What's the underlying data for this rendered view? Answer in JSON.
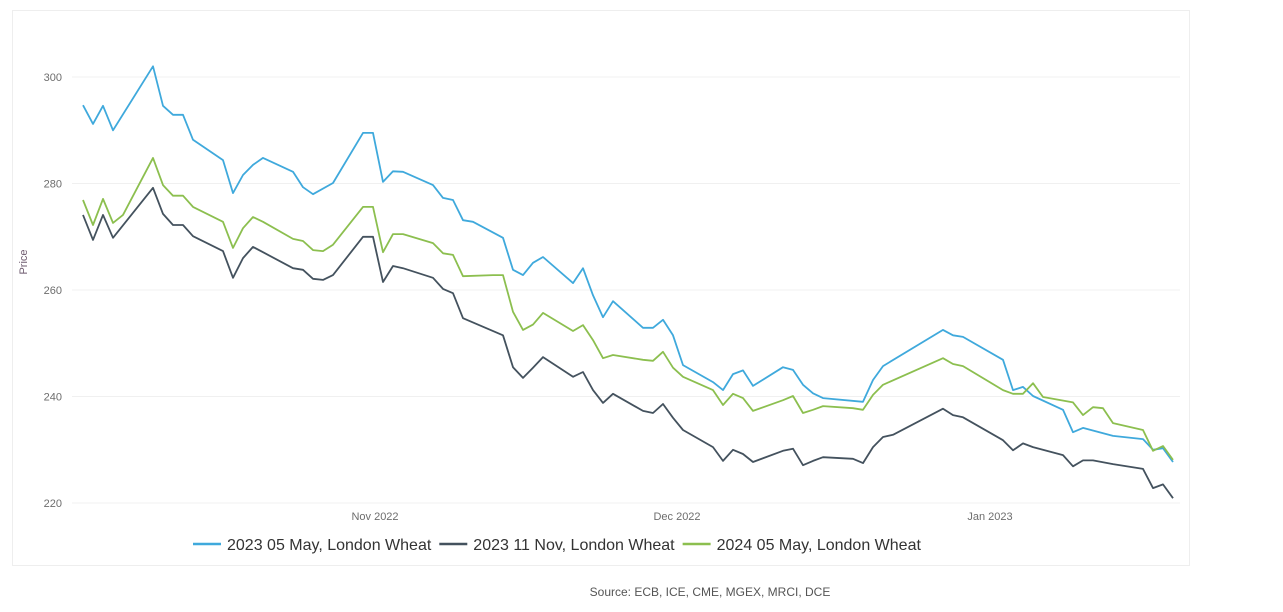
{
  "chart_data": {
    "type": "line",
    "title": "",
    "xlabel": "",
    "ylabel": "Price",
    "xlim": [
      2,
      111
    ],
    "ylim": [
      220,
      302
    ],
    "yticks": [
      220,
      240,
      260,
      280,
      300
    ],
    "xticks": [
      {
        "day": 31.2,
        "label": "Nov 2022"
      },
      {
        "day": 61.4,
        "label": "Dec 2022"
      },
      {
        "day": 92.7,
        "label": "Jan 2023"
      }
    ],
    "grid": true,
    "legend_position": "bottom",
    "source": "Source: ECB, ICE, CME, MGEX, MRCI, DCE",
    "series": [
      {
        "name": "2023 05 May, London Wheat",
        "color": "#3fa9dc",
        "points": [
          [
            2,
            294.7
          ],
          [
            3,
            291.2
          ],
          [
            4,
            294.6
          ],
          [
            5,
            290
          ],
          [
            9,
            302
          ],
          [
            10,
            294.6
          ],
          [
            11,
            292.9
          ],
          [
            12,
            292.9
          ],
          [
            13,
            288.2
          ],
          [
            16,
            284.4
          ],
          [
            17,
            278.2
          ],
          [
            18,
            281.6
          ],
          [
            19,
            283.5
          ],
          [
            20,
            284.8
          ],
          [
            23,
            282.2
          ],
          [
            24,
            279.3
          ],
          [
            25,
            278
          ],
          [
            27,
            280.1
          ],
          [
            30,
            289.5
          ],
          [
            31,
            289.5
          ],
          [
            32,
            280.3
          ],
          [
            33,
            282.3
          ],
          [
            34,
            282.2
          ],
          [
            37,
            279.7
          ],
          [
            38,
            277.3
          ],
          [
            39,
            276.9
          ],
          [
            40,
            273.1
          ],
          [
            41,
            272.8
          ],
          [
            44,
            269.8
          ],
          [
            45,
            263.8
          ],
          [
            46,
            262.8
          ],
          [
            47,
            265.1
          ],
          [
            48,
            266.2
          ],
          [
            51,
            261.3
          ],
          [
            52,
            264.1
          ],
          [
            53,
            259
          ],
          [
            54,
            254.9
          ],
          [
            55,
            257.9
          ],
          [
            58,
            252.9
          ],
          [
            59,
            252.9
          ],
          [
            60,
            254.4
          ],
          [
            61,
            251.5
          ],
          [
            62,
            245.9
          ],
          [
            65,
            242.7
          ],
          [
            66,
            241.2
          ],
          [
            67,
            244.2
          ],
          [
            68,
            244.9
          ],
          [
            69,
            242
          ],
          [
            72,
            245.5
          ],
          [
            73,
            245
          ],
          [
            74,
            242.2
          ],
          [
            75,
            240.6
          ],
          [
            76,
            239.7
          ],
          [
            80,
            239
          ],
          [
            81,
            243.1
          ],
          [
            82,
            245.7
          ],
          [
            88,
            252.5
          ],
          [
            89,
            251.5
          ],
          [
            90,
            251.2
          ],
          [
            94,
            246.9
          ],
          [
            95,
            241.2
          ],
          [
            96,
            241.8
          ],
          [
            97,
            240.1
          ],
          [
            100,
            237.5
          ],
          [
            101,
            233.3
          ],
          [
            102,
            234.1
          ],
          [
            105,
            232.6
          ],
          [
            108,
            232
          ],
          [
            109,
            230
          ],
          [
            110,
            230.3
          ],
          [
            111,
            227.7
          ]
        ]
      },
      {
        "name": "2023 11 Nov, London Wheat",
        "color": "#44525e",
        "points": [
          [
            2,
            274.1
          ],
          [
            3,
            269.4
          ],
          [
            4,
            274.1
          ],
          [
            5,
            269.8
          ],
          [
            9,
            279.2
          ],
          [
            10,
            274.3
          ],
          [
            11,
            272.2
          ],
          [
            12,
            272.2
          ],
          [
            13,
            270.1
          ],
          [
            16,
            267.3
          ],
          [
            17,
            262.3
          ],
          [
            18,
            266
          ],
          [
            19,
            268.1
          ],
          [
            20,
            267.1
          ],
          [
            23,
            264.1
          ],
          [
            24,
            263.8
          ],
          [
            25,
            262.1
          ],
          [
            26,
            261.9
          ],
          [
            27,
            262.8
          ],
          [
            30,
            270
          ],
          [
            31,
            270
          ],
          [
            32,
            261.5
          ],
          [
            33,
            264.5
          ],
          [
            34,
            264.1
          ],
          [
            37,
            262.3
          ],
          [
            38,
            260.2
          ],
          [
            39,
            259.4
          ],
          [
            40,
            254.7
          ],
          [
            44,
            251.5
          ],
          [
            45,
            245.5
          ],
          [
            46,
            243.5
          ],
          [
            47,
            245.4
          ],
          [
            48,
            247.4
          ],
          [
            51,
            243.7
          ],
          [
            52,
            244.6
          ],
          [
            53,
            241.2
          ],
          [
            54,
            238.8
          ],
          [
            55,
            240.5
          ],
          [
            58,
            237.3
          ],
          [
            59,
            236.9
          ],
          [
            60,
            238.6
          ],
          [
            61,
            236
          ],
          [
            62,
            233.7
          ],
          [
            65,
            230.5
          ],
          [
            66,
            227.9
          ],
          [
            67,
            230
          ],
          [
            68,
            229.2
          ],
          [
            69,
            227.7
          ],
          [
            72,
            229.8
          ],
          [
            73,
            230.2
          ],
          [
            74,
            227.1
          ],
          [
            75,
            227.9
          ],
          [
            76,
            228.6
          ],
          [
            79,
            228.3
          ],
          [
            80,
            227.5
          ],
          [
            81,
            230.5
          ],
          [
            82,
            232.4
          ],
          [
            83,
            232.8
          ],
          [
            88,
            237.7
          ],
          [
            89,
            236.5
          ],
          [
            90,
            236.1
          ],
          [
            94,
            231.8
          ],
          [
            95,
            229.9
          ],
          [
            96,
            231.2
          ],
          [
            97,
            230.5
          ],
          [
            100,
            229
          ],
          [
            101,
            226.9
          ],
          [
            102,
            228
          ],
          [
            103,
            228
          ],
          [
            105,
            227.3
          ],
          [
            108,
            226.4
          ],
          [
            109,
            222.8
          ],
          [
            110,
            223.5
          ],
          [
            111,
            220.9
          ]
        ]
      },
      {
        "name": "2024 05 May, London Wheat",
        "color": "#8cbf4f",
        "points": [
          [
            2,
            276.9
          ],
          [
            3,
            272.2
          ],
          [
            4,
            277.1
          ],
          [
            5,
            272.6
          ],
          [
            6,
            274.1
          ],
          [
            9,
            284.8
          ],
          [
            10,
            279.7
          ],
          [
            11,
            277.7
          ],
          [
            12,
            277.7
          ],
          [
            13,
            275.6
          ],
          [
            16,
            272.8
          ],
          [
            17,
            267.9
          ],
          [
            18,
            271.6
          ],
          [
            19,
            273.7
          ],
          [
            20,
            272.8
          ],
          [
            23,
            269.6
          ],
          [
            24,
            269.2
          ],
          [
            25,
            267.5
          ],
          [
            26,
            267.3
          ],
          [
            27,
            268.5
          ],
          [
            30,
            275.6
          ],
          [
            31,
            275.6
          ],
          [
            32,
            267.1
          ],
          [
            33,
            270.5
          ],
          [
            34,
            270.5
          ],
          [
            37,
            268.8
          ],
          [
            38,
            266.9
          ],
          [
            39,
            266.6
          ],
          [
            40,
            262.6
          ],
          [
            43,
            262.8
          ],
          [
            44,
            262.8
          ],
          [
            45,
            255.9
          ],
          [
            46,
            252.5
          ],
          [
            47,
            253.5
          ],
          [
            48,
            255.7
          ],
          [
            51,
            252.3
          ],
          [
            52,
            253.4
          ],
          [
            53,
            250.6
          ],
          [
            54,
            247.2
          ],
          [
            55,
            247.8
          ],
          [
            58,
            246.9
          ],
          [
            59,
            246.7
          ],
          [
            60,
            248.4
          ],
          [
            61,
            245.4
          ],
          [
            62,
            243.7
          ],
          [
            65,
            241.2
          ],
          [
            66,
            238.4
          ],
          [
            67,
            240.5
          ],
          [
            68,
            239.7
          ],
          [
            69,
            237.3
          ],
          [
            72,
            239.3
          ],
          [
            73,
            240.1
          ],
          [
            74,
            236.9
          ],
          [
            75,
            237.5
          ],
          [
            76,
            238.2
          ],
          [
            79,
            237.8
          ],
          [
            80,
            237.5
          ],
          [
            81,
            240.3
          ],
          [
            82,
            242.2
          ],
          [
            88,
            247.2
          ],
          [
            89,
            246.1
          ],
          [
            90,
            245.7
          ],
          [
            94,
            241.2
          ],
          [
            95,
            240.5
          ],
          [
            96,
            240.5
          ],
          [
            97,
            242.5
          ],
          [
            98,
            239.9
          ],
          [
            101,
            238.9
          ],
          [
            102,
            236.5
          ],
          [
            103,
            238
          ],
          [
            104,
            237.8
          ],
          [
            105,
            235
          ],
          [
            108,
            233.7
          ],
          [
            109,
            229.8
          ],
          [
            110,
            230.7
          ],
          [
            111,
            228.1
          ]
        ]
      }
    ]
  }
}
